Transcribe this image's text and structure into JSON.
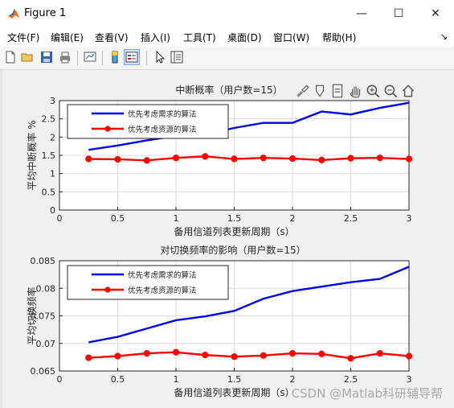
{
  "window": {
    "title": "Figure 1",
    "minimize_glyph": "—",
    "maximize_glyph": "☐",
    "close_glyph": "✕"
  },
  "menu": {
    "items": [
      "文件(F)",
      "编辑(E)",
      "查看(V)",
      "插入(I)",
      "工具(T)",
      "桌面(D)",
      "窗口(W)",
      "帮助(H)"
    ],
    "overflow_glyph": "↘"
  },
  "toolbar": {
    "icons": [
      "new-figure-icon",
      "open-file-icon",
      "save-icon",
      "print-icon",
      "link-plot-icon",
      "insert-colorbar-icon",
      "insert-legend-icon",
      "edit-plot-arrow-icon",
      "property-inspector-icon"
    ]
  },
  "axes_toolbar": {
    "icons": [
      "brush-icon",
      "data-tips-icon",
      "export-icon",
      "pan-icon",
      "zoom-in-icon",
      "zoom-out-icon",
      "home-icon"
    ]
  },
  "colors": {
    "series1": "#0000ff",
    "series2": "#ff0000",
    "axis": "#262626",
    "grid": "#dcdcdc"
  },
  "chart_data": [
    {
      "type": "line",
      "title": "中断概率（用户数=15）",
      "xlabel": "备用信道列表更新周期（s）",
      "ylabel": "平均中断概率 %",
      "xlim": [
        0,
        3
      ],
      "ylim": [
        0,
        3
      ],
      "xticks": [
        "0",
        "0.5",
        "1",
        "1.5",
        "2",
        "2.5",
        "3"
      ],
      "yticks": [
        "0",
        "0.5",
        "1",
        "1.5",
        "2",
        "2.5",
        "3"
      ],
      "grid": true,
      "legend_position": "top-left",
      "x": [
        0.25,
        0.5,
        0.75,
        1.0,
        1.25,
        1.5,
        1.75,
        2.0,
        2.25,
        2.5,
        2.75,
        3.0
      ],
      "series": [
        {
          "name": "优先考虑需求的算法",
          "color": "#0000ff",
          "marker": "none",
          "values": [
            1.65,
            1.77,
            1.91,
            2.03,
            2.07,
            2.25,
            2.39,
            2.39,
            2.7,
            2.62,
            2.8,
            2.94
          ]
        },
        {
          "name": "优先考虑资源的算法",
          "color": "#ff0000",
          "marker": "circle",
          "values": [
            1.4,
            1.39,
            1.36,
            1.43,
            1.47,
            1.4,
            1.43,
            1.41,
            1.37,
            1.42,
            1.43,
            1.4
          ]
        }
      ]
    },
    {
      "type": "line",
      "title": "对切换频率的影响（用户数=15）",
      "xlabel": "备用信道列表更新周期（s）",
      "ylabel": "平均切换频率",
      "xlim": [
        0,
        3
      ],
      "ylim": [
        0.065,
        0.085
      ],
      "xticks": [
        "0",
        "0.5",
        "1",
        "1.5",
        "2",
        "2.5",
        "3"
      ],
      "yticks": [
        "0.065",
        "0.07",
        "0.075",
        "0.08",
        "0.085"
      ],
      "grid": true,
      "legend_position": "top-left",
      "x": [
        0.25,
        0.5,
        0.75,
        1.0,
        1.25,
        1.5,
        1.75,
        2.0,
        2.25,
        2.5,
        2.75,
        3.0
      ],
      "series": [
        {
          "name": "优先考虑需求的算法",
          "color": "#0000ff",
          "marker": "none",
          "values": [
            0.0702,
            0.0712,
            0.0727,
            0.0742,
            0.0749,
            0.0759,
            0.0781,
            0.0795,
            0.0803,
            0.0811,
            0.0817,
            0.0839
          ]
        },
        {
          "name": "优先考虑资源的算法",
          "color": "#ff0000",
          "marker": "circle",
          "values": [
            0.0674,
            0.0677,
            0.0682,
            0.0684,
            0.0679,
            0.0676,
            0.0678,
            0.0682,
            0.0681,
            0.0673,
            0.0682,
            0.0677
          ]
        }
      ]
    }
  ],
  "watermark": "CSDN @Matlab科研辅导帮"
}
